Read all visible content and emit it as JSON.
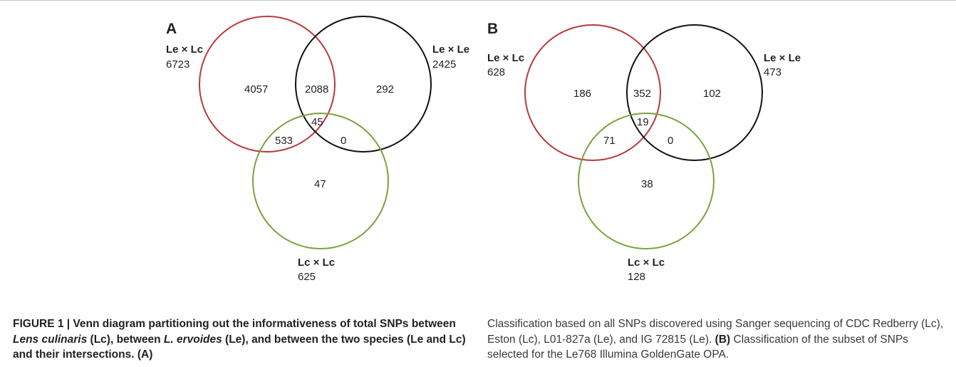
{
  "panels": [
    {
      "letter": "A",
      "sets": [
        {
          "name": "Le × Lc",
          "total": "6723",
          "color": "#b83a3a"
        },
        {
          "name": "Le × Le",
          "total": "2425",
          "color": "#111111"
        },
        {
          "name": "Lc × Lc",
          "total": "625",
          "color": "#7aa33c"
        }
      ],
      "regions": {
        "only_lexlc": "4057",
        "lexlc_lexle": "2088",
        "only_lexle": "292",
        "all_three": "45",
        "lexlc_lcxlc": "533",
        "lexle_lcxlc": "0",
        "only_lcxlc": "47"
      }
    },
    {
      "letter": "B",
      "sets": [
        {
          "name": "Le × Lc",
          "total": "628",
          "color": "#b83a3a"
        },
        {
          "name": "Le × Le",
          "total": "473",
          "color": "#111111"
        },
        {
          "name": "Lc × Lc",
          "total": "128",
          "color": "#7aa33c"
        }
      ],
      "regions": {
        "only_lexlc": "186",
        "lexlc_lexle": "352",
        "only_lexle": "102",
        "all_three": "19",
        "lexlc_lcxlc": "71",
        "lexle_lcxlc": "0",
        "only_lcxlc": "38"
      }
    }
  ],
  "caption": {
    "figure_label": "FIGURE 1 | ",
    "left_1": "Venn diagram partitioning out the informativeness of total SNPs between ",
    "left_species1": "Lens culinaris",
    "left_2": " (Lc), between ",
    "left_species2": "L. ervoides",
    "left_3": " (Le), and between the two species (Le and Lc) and their intersections. (A)",
    "right_1": "Classification based on all SNPs discovered using Sanger sequencing of CDC Redberry (Lc), Eston (Lc), L01-827a (Le), and IG 72815 (Le). ",
    "right_b": "(B)",
    "right_2": " Classification of the subset of SNPs selected for the Le768 Illumina GoldenGate OPA."
  }
}
